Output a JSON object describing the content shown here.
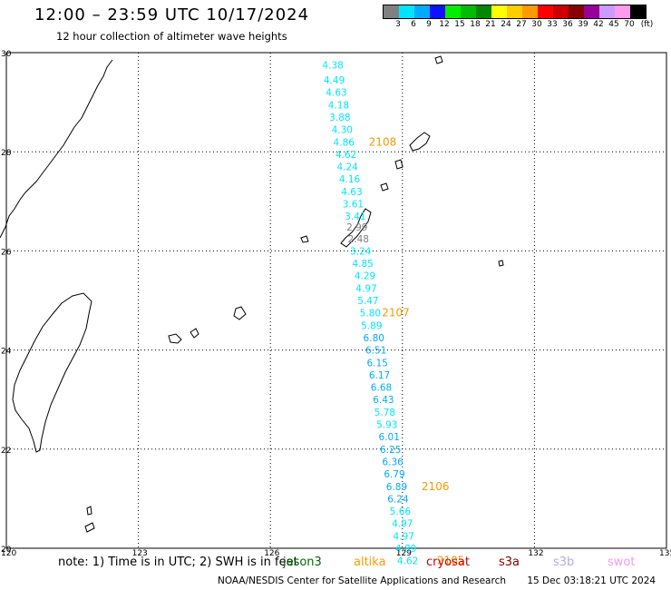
{
  "header": {
    "title": "12:00 – 23:59 UTC 10/17/2024",
    "subtitle": "12 hour collection of altimeter wave heights"
  },
  "colorbar": {
    "labels": [
      "3",
      "6",
      "9",
      "12",
      "15",
      "18",
      "21",
      "24",
      "27",
      "30",
      "33",
      "36",
      "39",
      "42",
      "45",
      "70"
    ],
    "unit": "(ft)",
    "colors": [
      "#808080",
      "#00e5ff",
      "#00aaff",
      "#1010ff",
      "#00ee00",
      "#00bb00",
      "#008800",
      "#ffff00",
      "#ffcc00",
      "#ff9900",
      "#ff0000",
      "#cc0000",
      "#880000",
      "#990099",
      "#cc99ff",
      "#ff99ee",
      "#000000"
    ]
  },
  "map": {
    "lon_range": [
      120,
      135
    ],
    "lat_range": [
      20,
      30
    ],
    "lon_ticks": [
      "120",
      "123",
      "126",
      "129",
      "132",
      "135"
    ],
    "lat_ticks": [
      "30",
      "28",
      "26",
      "24",
      "22",
      "20"
    ]
  },
  "track": {
    "points": [
      {
        "lon": 127.42,
        "lat": 29.75,
        "v": "4.38",
        "c": "#00e5ff"
      },
      {
        "lon": 127.45,
        "lat": 29.45,
        "v": "4.49",
        "c": "#00e5ff"
      },
      {
        "lon": 127.5,
        "lat": 29.2,
        "v": "4.63",
        "c": "#00e5ff"
      },
      {
        "lon": 127.55,
        "lat": 28.95,
        "v": "4.18",
        "c": "#00e5ff"
      },
      {
        "lon": 127.58,
        "lat": 28.7,
        "v": "3.88",
        "c": "#00e5ff"
      },
      {
        "lon": 127.63,
        "lat": 28.45,
        "v": "4.30",
        "c": "#00e5ff"
      },
      {
        "lon": 127.67,
        "lat": 28.2,
        "v": "4.86",
        "c": "#00e5ff"
      },
      {
        "lon": 127.72,
        "lat": 27.95,
        "v": "4.62",
        "c": "#00e5ff"
      },
      {
        "lon": 127.75,
        "lat": 27.7,
        "v": "4.24",
        "c": "#00e5ff"
      },
      {
        "lon": 127.8,
        "lat": 27.45,
        "v": "4.16",
        "c": "#00e5ff"
      },
      {
        "lon": 127.85,
        "lat": 27.2,
        "v": "4.63",
        "c": "#00e5ff"
      },
      {
        "lon": 127.88,
        "lat": 26.95,
        "v": "3.61",
        "c": "#00e5ff"
      },
      {
        "lon": 127.93,
        "lat": 26.7,
        "v": "3.41",
        "c": "#00e5ff"
      },
      {
        "lon": 127.97,
        "lat": 26.48,
        "v": "2.99",
        "c": "#808080"
      },
      {
        "lon": 128.0,
        "lat": 26.25,
        "v": "2.48",
        "c": "#808080"
      },
      {
        "lon": 128.05,
        "lat": 26.0,
        "v": "3.24",
        "c": "#00e5ff"
      },
      {
        "lon": 128.1,
        "lat": 25.75,
        "v": "4.85",
        "c": "#00e5ff"
      },
      {
        "lon": 128.15,
        "lat": 25.5,
        "v": "4.29",
        "c": "#00e5ff"
      },
      {
        "lon": 128.18,
        "lat": 25.25,
        "v": "4.97",
        "c": "#00e5ff"
      },
      {
        "lon": 128.22,
        "lat": 25.0,
        "v": "5.47",
        "c": "#00e5ff"
      },
      {
        "lon": 128.27,
        "lat": 24.75,
        "v": "5.80",
        "c": "#00e5ff"
      },
      {
        "lon": 128.3,
        "lat": 24.5,
        "v": "5.89",
        "c": "#00e5ff"
      },
      {
        "lon": 128.35,
        "lat": 24.25,
        "v": "6.80",
        "c": "#00aaff"
      },
      {
        "lon": 128.4,
        "lat": 24.0,
        "v": "6.51",
        "c": "#00aaff"
      },
      {
        "lon": 128.43,
        "lat": 23.75,
        "v": "6.15",
        "c": "#00aaff"
      },
      {
        "lon": 128.48,
        "lat": 23.5,
        "v": "6.17",
        "c": "#00aaff"
      },
      {
        "lon": 128.52,
        "lat": 23.25,
        "v": "6.68",
        "c": "#00aaff"
      },
      {
        "lon": 128.57,
        "lat": 23.0,
        "v": "6.43",
        "c": "#00aaff"
      },
      {
        "lon": 128.6,
        "lat": 22.75,
        "v": "5.78",
        "c": "#00e5ff"
      },
      {
        "lon": 128.65,
        "lat": 22.5,
        "v": "5.93",
        "c": "#00e5ff"
      },
      {
        "lon": 128.7,
        "lat": 22.25,
        "v": "6.01",
        "c": "#00aaff"
      },
      {
        "lon": 128.73,
        "lat": 22.0,
        "v": "6.25",
        "c": "#00aaff"
      },
      {
        "lon": 128.78,
        "lat": 21.75,
        "v": "6.36",
        "c": "#00aaff"
      },
      {
        "lon": 128.82,
        "lat": 21.5,
        "v": "6.79",
        "c": "#00aaff"
      },
      {
        "lon": 128.87,
        "lat": 21.25,
        "v": "6.89",
        "c": "#00aaff"
      },
      {
        "lon": 128.9,
        "lat": 21.0,
        "v": "6.24",
        "c": "#00aaff"
      },
      {
        "lon": 128.95,
        "lat": 20.75,
        "v": "5.66",
        "c": "#00e5ff"
      },
      {
        "lon": 129.0,
        "lat": 20.5,
        "v": "4.97",
        "c": "#00e5ff"
      },
      {
        "lon": 129.03,
        "lat": 20.25,
        "v": "4.97",
        "c": "#00e5ff"
      },
      {
        "lon": 129.08,
        "lat": 20.0,
        "v": "4.89",
        "c": "#00e5ff"
      },
      {
        "lon": 129.12,
        "lat": 19.75,
        "v": "4.62",
        "c": "#00e5ff"
      }
    ],
    "pass_labels": [
      {
        "lon": 128.55,
        "lat": 28.2,
        "t": "2108"
      },
      {
        "lon": 128.85,
        "lat": 24.75,
        "t": "2107"
      },
      {
        "lon": 129.75,
        "lat": 21.25,
        "t": "2106"
      },
      {
        "lon": 130.1,
        "lat": 19.75,
        "t": "2105"
      }
    ]
  },
  "footer": {
    "note": "note:  1) Time is in UTC;  2) SWH is in feet",
    "satellites": [
      {
        "name": "jason3",
        "color": "#006600"
      },
      {
        "name": "altika",
        "color": "#ff9900"
      },
      {
        "name": "cryosat",
        "color": "#cc0000"
      },
      {
        "name": "s3a",
        "color": "#800000"
      },
      {
        "name": "s3b",
        "color": "#b8a8ee"
      },
      {
        "name": "swot",
        "color": "#ff99ee"
      }
    ],
    "credit": "NOAA/NESDIS Center for Satellite Applications and Research",
    "timestamp": "15 Dec 03:18:21 UTC 2024"
  }
}
